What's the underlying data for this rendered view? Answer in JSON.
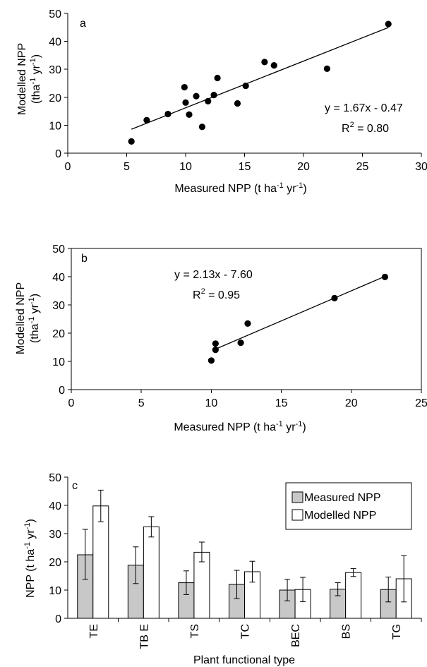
{
  "chart_data": [
    {
      "id": "a",
      "type": "scatter",
      "panel_label": "a",
      "xlabel": {
        "main": "Measured NPP (t ha",
        "sup1": "-1",
        "mid": " yr",
        "sup2": "-1",
        "end": ")"
      },
      "ylabel": {
        "line1": "Modelled NPP",
        "line2": {
          "main": "(tha",
          "sup1": "-1",
          "mid": " yr",
          "sup2": "-1",
          "end": ")"
        }
      },
      "xlim": [
        0,
        30
      ],
      "ylim": [
        0,
        50
      ],
      "xticks": [
        0,
        5,
        10,
        15,
        20,
        25,
        30
      ],
      "yticks": [
        0,
        10,
        20,
        30,
        40,
        50
      ],
      "frame": "open",
      "x": [
        5.4,
        6.7,
        8.5,
        9.9,
        10.0,
        10.3,
        10.9,
        11.4,
        11.9,
        12.4,
        12.7,
        14.4,
        15.1,
        16.7,
        17.5,
        22.0,
        27.2
      ],
      "y": [
        4.2,
        11.8,
        14.0,
        23.6,
        18.1,
        13.8,
        20.4,
        9.4,
        18.6,
        20.8,
        26.9,
        17.8,
        24.1,
        32.6,
        31.4,
        30.2,
        46.2
      ],
      "fit": {
        "slope": 1.67,
        "intercept": -0.47,
        "x_range": [
          5.4,
          27.2
        ]
      },
      "equation": "y = 1.67x - 0.47",
      "r2": {
        "label": "R",
        "sup": "2",
        "value": " = 0.80"
      }
    },
    {
      "id": "b",
      "type": "scatter",
      "panel_label": "b",
      "xlabel": {
        "main": "Measured NPP (t ha",
        "sup1": "-1",
        "mid": " yr",
        "sup2": "-1",
        "end": ")"
      },
      "ylabel": {
        "line1": "Modelled NPP",
        "line2": {
          "main": "(tha",
          "sup1": "-1",
          "mid": " yr",
          "sup2": "-1",
          "end": ")"
        }
      },
      "xlim": [
        0,
        25
      ],
      "ylim": [
        0,
        50
      ],
      "xticks": [
        0,
        5,
        10,
        15,
        20,
        25
      ],
      "yticks": [
        0,
        10,
        20,
        30,
        40,
        50
      ],
      "frame": "box",
      "x": [
        10.0,
        10.3,
        10.3,
        12.1,
        12.6,
        18.8,
        22.4
      ],
      "y": [
        10.3,
        14.1,
        16.3,
        16.6,
        23.4,
        32.4,
        39.9
      ],
      "fit": {
        "slope": 2.13,
        "intercept": -7.6,
        "x_range": [
          10.3,
          22.4
        ]
      },
      "equation": "y = 2.13x - 7.60",
      "r2": {
        "label": "R",
        "sup": "2",
        "value": " = 0.95"
      }
    },
    {
      "id": "c",
      "type": "bar",
      "panel_label": "c",
      "xlabel": {
        "main": "Plant functional type"
      },
      "ylabel": {
        "main": "NPP (t ha",
        "sup1": "-1",
        "mid": " yr",
        "sup2": "-1",
        "end": ")"
      },
      "ylim": [
        0,
        50
      ],
      "yticks": [
        0,
        10,
        20,
        30,
        40,
        50
      ],
      "frame": "open",
      "categories": [
        "TE",
        "TB E",
        "TS",
        "TC",
        "BEC",
        "BS",
        "TG"
      ],
      "series": [
        {
          "name": "Measured NPP",
          "color": "#c8c8c8",
          "values": [
            22.5,
            18.8,
            12.6,
            12.0,
            10.0,
            10.3,
            10.2
          ],
          "err_low": [
            13.8,
            12.3,
            8.4,
            7.0,
            6.2,
            8.0,
            5.8
          ],
          "err_high": [
            31.5,
            25.3,
            16.8,
            17.0,
            13.8,
            12.6,
            14.6
          ]
        },
        {
          "name": "Modelled NPP",
          "color": "#ffffff",
          "values": [
            39.8,
            32.4,
            23.4,
            16.5,
            10.2,
            16.2,
            14.0
          ],
          "err_low": [
            34.2,
            28.8,
            20.0,
            12.8,
            5.9,
            14.8,
            5.8
          ],
          "err_high": [
            45.4,
            36.0,
            27.0,
            20.2,
            14.5,
            17.6,
            22.2
          ]
        }
      ],
      "legend_position": "top-right"
    }
  ]
}
